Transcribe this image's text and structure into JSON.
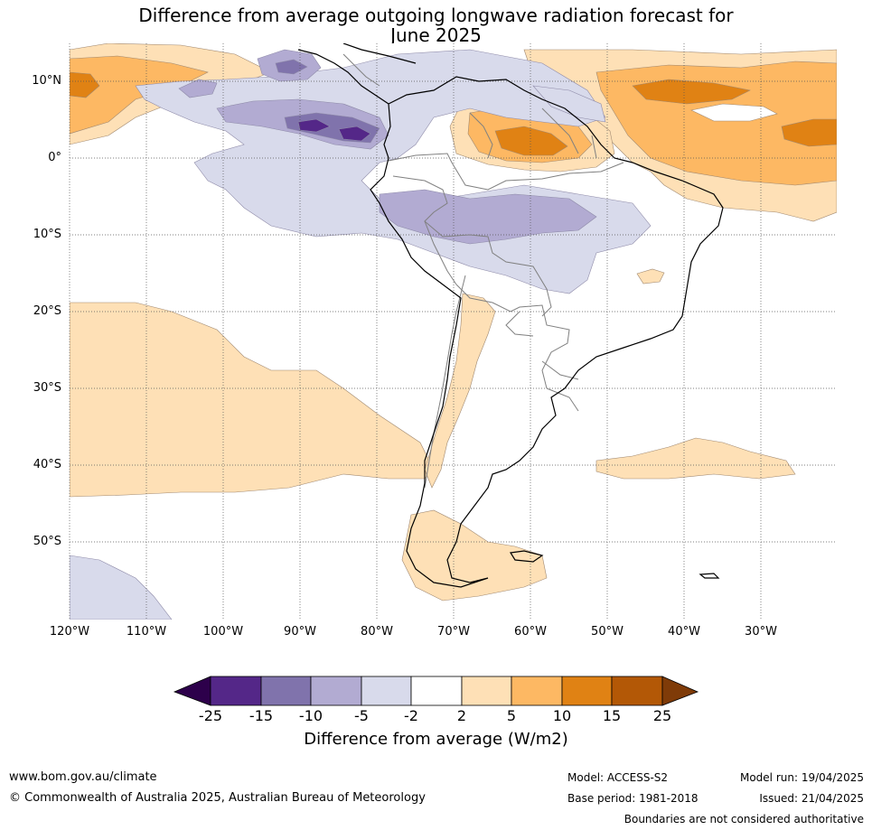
{
  "title": {
    "line1": "Difference from average outgoing longwave radiation forecast for",
    "line2": "June 2025"
  },
  "map": {
    "lat_labels": [
      "10°N",
      "0°",
      "10°S",
      "20°S",
      "30°S",
      "40°S",
      "50°S"
    ],
    "lon_labels": [
      "120°W",
      "110°W",
      "100°W",
      "90°W",
      "80°W",
      "70°W",
      "60°W",
      "50°W",
      "40°W",
      "30°W"
    ],
    "colors": {
      "neg25": "#2d004b",
      "neg15": "#542788",
      "neg10": "#8073ac",
      "neg5": "#b2abd2",
      "neg2": "#d8daeb",
      "zero": "#ffffff",
      "pos2": "#fee0b6",
      "pos5": "#fdb863",
      "pos10": "#e08214",
      "pos15": "#b35806",
      "pos25": "#7f3b08",
      "coast": "#000000",
      "border": "#808080",
      "grid": "#555555"
    }
  },
  "colorbar": {
    "ticks": [
      "-25",
      "-15",
      "-10",
      "-5",
      "-2",
      "2",
      "5",
      "10",
      "15",
      "25"
    ],
    "label": "Difference from average (W/m2)"
  },
  "footer": {
    "website": "www.bom.gov.au/climate",
    "copyright": "© Commonwealth of Australia 2025, Australian Bureau of Meteorology",
    "model": "Model: ACCESS-S2",
    "base_period": "Base period: 1981-2018",
    "model_run": "Model run: 19/04/2025",
    "issued": "Issued: 21/04/2025",
    "disclaimer": "Boundaries are not considered authoritative"
  }
}
